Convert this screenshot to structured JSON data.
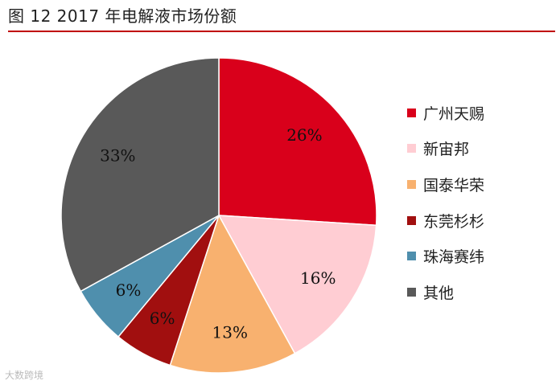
{
  "chart_data": {
    "type": "pie",
    "title": "图  12 2017 年电解液市场份额",
    "slices": [
      {
        "label": "广州天赐",
        "value": 26,
        "display": "26%",
        "color": "#d9001b"
      },
      {
        "label": "新宙邦",
        "value": 16,
        "display": "16%",
        "color": "#ffcdd3"
      },
      {
        "label": "国泰华荣",
        "value": 13,
        "display": "13%",
        "color": "#f8b16f"
      },
      {
        "label": "东莞杉杉",
        "value": 6,
        "display": "6%",
        "color": "#a10f0f"
      },
      {
        "label": "珠海赛纬",
        "value": 6,
        "display": "6%",
        "color": "#4f8fad"
      },
      {
        "label": "其他",
        "value": 33,
        "display": "33%",
        "color": "#595959"
      }
    ],
    "legend_position": "right"
  },
  "watermark": "大数跨境"
}
